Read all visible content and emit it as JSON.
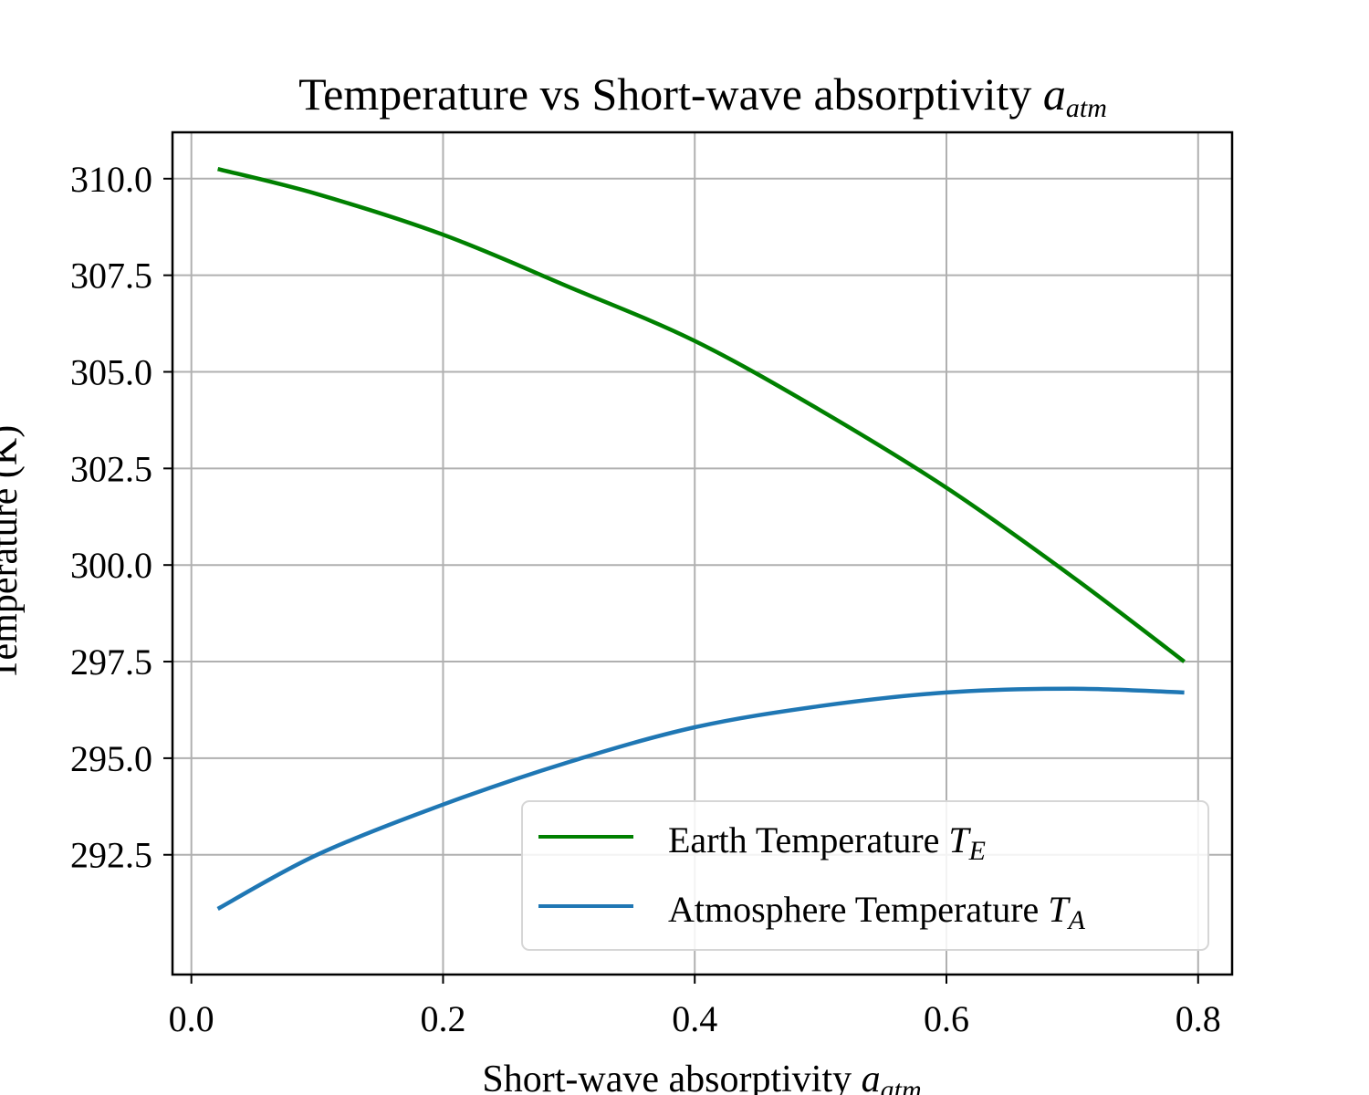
{
  "chart_data": {
    "type": "line",
    "title": "Temperature vs Short-wave absorptivity",
    "title_symbol": "a",
    "title_symbol_sub": "atm",
    "xlabel": "Short-wave absorptivity",
    "xlabel_symbol": "a",
    "xlabel_symbol_sub": "atm",
    "ylabel": "Temperature (K)",
    "xlim": [
      -0.015,
      0.827
    ],
    "ylim": [
      289.4,
      311.2
    ],
    "xticks": [
      0.0,
      0.2,
      0.4,
      0.6,
      0.8
    ],
    "xtick_labels": [
      "0.0",
      "0.2",
      "0.4",
      "0.6",
      "0.8"
    ],
    "yticks": [
      292.5,
      295.0,
      297.5,
      300.0,
      302.5,
      305.0,
      307.5,
      310.0
    ],
    "ytick_labels": [
      "292.5",
      "295.0",
      "297.5",
      "300.0",
      "302.5",
      "305.0",
      "307.5",
      "310.0"
    ],
    "grid": true,
    "legend_position": "lower right",
    "x": [
      0.021,
      0.1,
      0.2,
      0.3,
      0.4,
      0.5,
      0.6,
      0.7,
      0.789
    ],
    "series": [
      {
        "name": "Earth Temperature",
        "symbol": "T",
        "symbol_sub": "E",
        "color": "#008000",
        "values": [
          310.25,
          309.6,
          308.55,
          307.2,
          305.8,
          304.0,
          302.0,
          299.7,
          297.5
        ]
      },
      {
        "name": "Atmosphere Temperature",
        "symbol": "T",
        "symbol_sub": "A",
        "color": "#1f77b4",
        "values": [
          291.1,
          292.5,
          293.8,
          294.9,
          295.8,
          296.35,
          296.7,
          296.8,
          296.7
        ]
      }
    ]
  }
}
